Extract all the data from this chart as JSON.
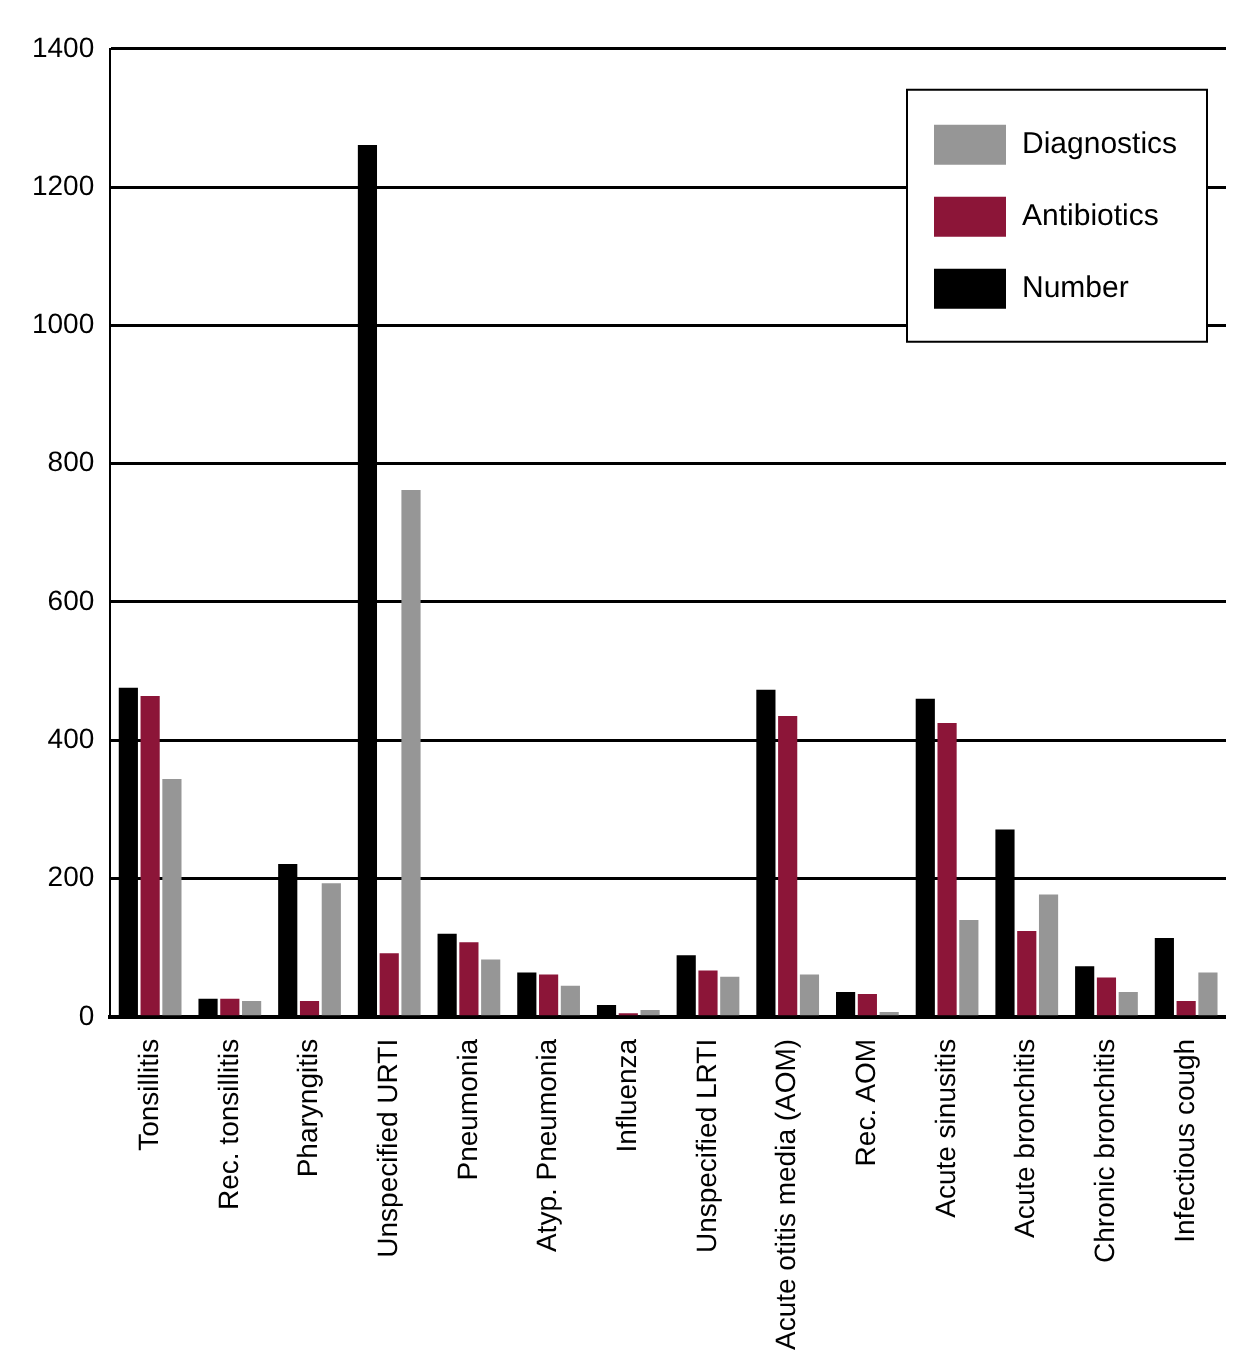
{
  "chart_data": {
    "type": "bar",
    "categories": [
      "Tonsillitis",
      "Rec. tonsillitis",
      "Pharyngitis",
      "Unspecified URTI",
      "Pneumonia",
      "Atyp. Pneumonia",
      "Influenza",
      "Unspecified LRTI",
      "Acute otitis media (AOM)",
      "Rec. AOM",
      "Acute sinusitis",
      "Acute bronchitis",
      "Chronic bronchitis",
      "Infectious cough"
    ],
    "series": [
      {
        "name": "Number",
        "color": "#000000",
        "values": [
          476,
          26,
          221,
          1261,
          120,
          64,
          17,
          89,
          473,
          36,
          460,
          271,
          73,
          114
        ]
      },
      {
        "name": "Antibiotics",
        "color": "#8c1538",
        "values": [
          464,
          26,
          23,
          92,
          108,
          61,
          5,
          67,
          435,
          33,
          425,
          124,
          57,
          23
        ]
      },
      {
        "name": "Diagnostics",
        "color": "#969696",
        "values": [
          344,
          23,
          193,
          762,
          83,
          45,
          10,
          58,
          61,
          7,
          140,
          177,
          36,
          64
        ]
      }
    ],
    "ylim": [
      0,
      1400
    ],
    "yticks": [
      0,
      200,
      400,
      600,
      800,
      1000,
      1200,
      1400
    ],
    "grid": "y",
    "legend": "top right"
  }
}
